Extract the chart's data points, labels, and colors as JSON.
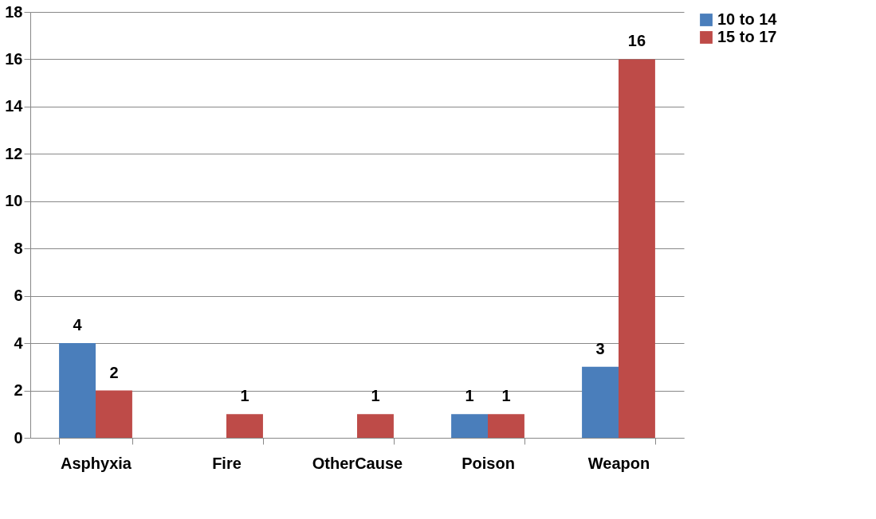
{
  "chart_data": {
    "type": "bar",
    "categories": [
      "Asphyxia",
      "Fire",
      "OtherCause",
      "Poison",
      "Weapon"
    ],
    "series": [
      {
        "name": "10 to 14",
        "color": "#4a7ebb",
        "values": [
          4,
          null,
          null,
          1,
          3
        ]
      },
      {
        "name": "15 to 17",
        "color": "#be4b48",
        "values": [
          2,
          1,
          1,
          1,
          16
        ]
      }
    ],
    "ylim": [
      0,
      18
    ],
    "yticks": [
      0,
      2,
      4,
      6,
      8,
      10,
      12,
      14,
      16,
      18
    ],
    "grid": "y",
    "legend": "right",
    "data_labels": true
  }
}
